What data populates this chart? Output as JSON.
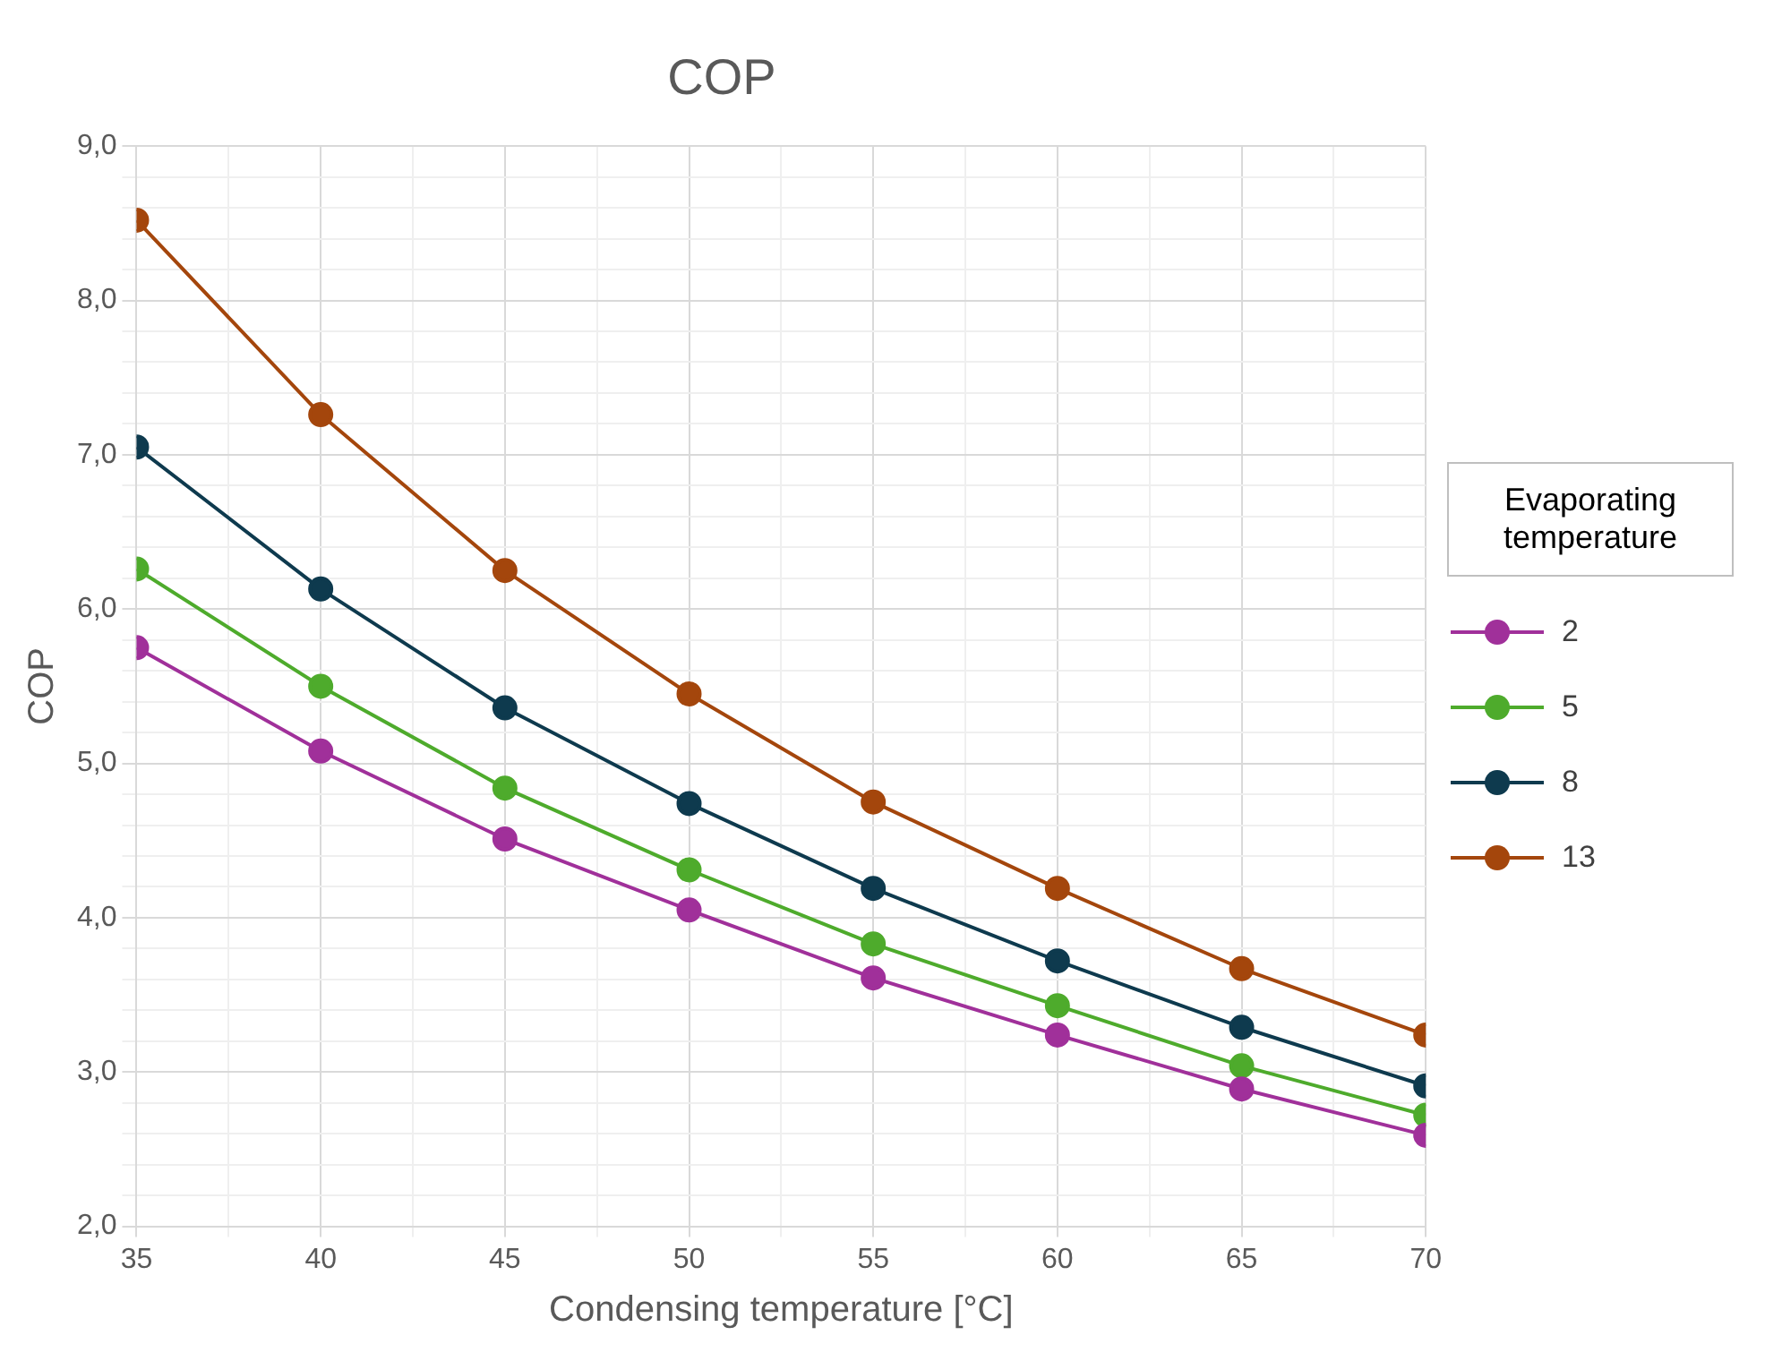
{
  "chart_data": {
    "type": "line",
    "title": "COP",
    "xlabel": "Condensing temperature [°C]",
    "ylabel": "COP",
    "legend_title": "Evaporating temperature",
    "legend": "right",
    "grid": true,
    "marker": "circle",
    "line_style": "solid",
    "x": [
      35,
      40,
      45,
      50,
      55,
      60,
      65,
      70
    ],
    "xlim": [
      35,
      70
    ],
    "xticks": [
      35,
      {
        "value": 37.5,
        "label": null
      },
      40,
      {
        "value": 42.5,
        "label": null
      },
      45,
      {
        "value": 47.5,
        "label": null
      },
      50,
      {
        "value": 52.5,
        "label": null
      },
      55,
      {
        "value": 57.5,
        "label": null
      },
      60,
      {
        "value": 62.5,
        "label": null
      },
      65,
      {
        "value": 67.5,
        "label": null
      },
      70
    ],
    "ylim": [
      2,
      9
    ],
    "yticks": [
      {
        "value": 2,
        "label": "2,0"
      },
      {
        "value": 2.2,
        "label": null
      },
      {
        "value": 2.4,
        "label": null
      },
      {
        "value": 2.6,
        "label": null
      },
      {
        "value": 2.8,
        "label": null
      },
      {
        "value": 3,
        "label": "3,0"
      },
      {
        "value": 3.2,
        "label": null
      },
      {
        "value": 3.4,
        "label": null
      },
      {
        "value": 3.6,
        "label": null
      },
      {
        "value": 3.8,
        "label": null
      },
      {
        "value": 4,
        "label": "4,0"
      },
      {
        "value": 4.2,
        "label": null
      },
      {
        "value": 4.4,
        "label": null
      },
      {
        "value": 4.6,
        "label": null
      },
      {
        "value": 4.8,
        "label": null
      },
      {
        "value": 5,
        "label": "5,0"
      },
      {
        "value": 5.2,
        "label": null
      },
      {
        "value": 5.4,
        "label": null
      },
      {
        "value": 5.6,
        "label": null
      },
      {
        "value": 5.8,
        "label": null
      },
      {
        "value": 6,
        "label": "6,0"
      },
      {
        "value": 6.2,
        "label": null
      },
      {
        "value": 6.4,
        "label": null
      },
      {
        "value": 6.6,
        "label": null
      },
      {
        "value": 6.8,
        "label": null
      },
      {
        "value": 7,
        "label": "7,0"
      },
      {
        "value": 7.2,
        "label": null
      },
      {
        "value": 7.4,
        "label": null
      },
      {
        "value": 7.6,
        "label": null
      },
      {
        "value": 7.8,
        "label": null
      },
      {
        "value": 8,
        "label": "8,0"
      },
      {
        "value": 8.2,
        "label": null
      },
      {
        "value": 8.4,
        "label": null
      },
      {
        "value": 8.6,
        "label": null
      },
      {
        "value": 8.8,
        "label": null
      },
      {
        "value": 9,
        "label": "9,0"
      }
    ],
    "series": [
      {
        "name": "2",
        "color": "#a0309a",
        "values": [
          5.75,
          5.08,
          4.51,
          4.05,
          3.61,
          3.24,
          2.89,
          2.59
        ]
      },
      {
        "name": "5",
        "color": "#4eab2c",
        "values": [
          6.26,
          5.5,
          4.84,
          4.31,
          3.83,
          3.43,
          3.04,
          2.72
        ]
      },
      {
        "name": "8",
        "color": "#0e3a4e",
        "values": [
          7.05,
          6.13,
          5.36,
          4.74,
          4.19,
          3.72,
          3.29,
          2.91
        ]
      },
      {
        "name": "13",
        "color": "#a4460c",
        "values": [
          8.52,
          7.26,
          6.25,
          5.45,
          4.75,
          4.19,
          3.67,
          3.24
        ]
      }
    ]
  }
}
